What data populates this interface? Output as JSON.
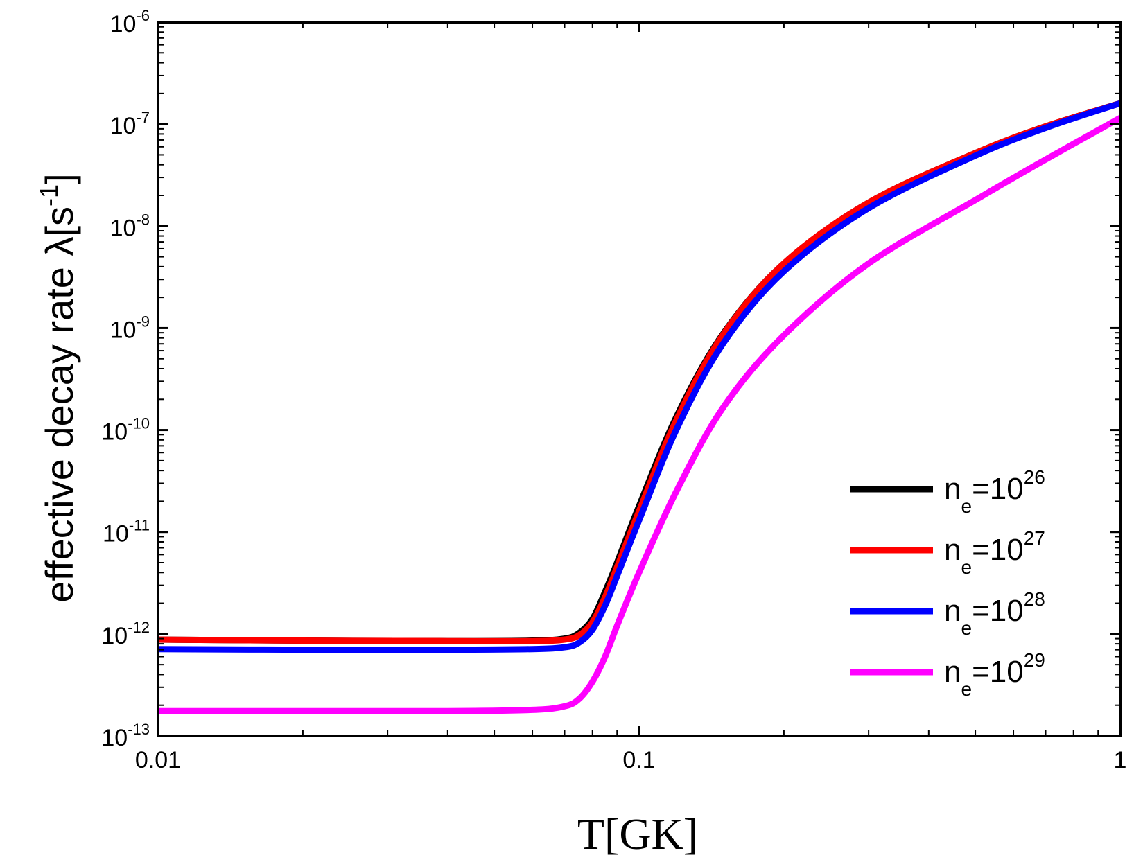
{
  "chart_data": {
    "type": "line",
    "xlabel": "T[GK]",
    "ylabel": {
      "main": "effective decay rate λ[s",
      "sup": "-1",
      "end": "]"
    },
    "xscale": "log",
    "yscale": "log",
    "xlim": [
      0.01,
      1
    ],
    "ylim": [
      1e-13,
      1e-06
    ],
    "x_ticks": [
      {
        "value": 0.01,
        "label": "0.01"
      },
      {
        "value": 0.1,
        "label": "0.1"
      },
      {
        "value": 1,
        "label": "1"
      }
    ],
    "y_ticks": [
      {
        "exp": -6,
        "base": "10",
        "sup": "-6"
      },
      {
        "exp": -7,
        "base": "10",
        "sup": "-7"
      },
      {
        "exp": -8,
        "base": "10",
        "sup": "-8"
      },
      {
        "exp": -9,
        "base": "10",
        "sup": "-9"
      },
      {
        "exp": -10,
        "base": "10",
        "sup": "-10"
      },
      {
        "exp": -11,
        "base": "10",
        "sup": "-11"
      },
      {
        "exp": -12,
        "base": "10",
        "sup": "-12"
      },
      {
        "exp": -13,
        "base": "10",
        "sup": "-13"
      }
    ],
    "legend_position": "bottom-right",
    "x": [
      0.01,
      0.02,
      0.04,
      0.06,
      0.07,
      0.075,
      0.08,
      0.085,
      0.09,
      0.1,
      0.12,
      0.15,
      0.2,
      0.3,
      0.5,
      0.7,
      1.0
    ],
    "series": [
      {
        "name": {
          "base": "n",
          "sub": "e",
          "mid": "=10",
          "sup": "26"
        },
        "color": "#000000",
        "values": [
          8.8e-13,
          8.6e-13,
          8.5e-13,
          8.6e-13,
          9e-13,
          1.02e-12,
          1.4e-12,
          2.6e-12,
          5e-12,
          1.8e-11,
          1.4e-10,
          9e-10,
          4.3e-09,
          1.7e-08,
          5.2e-08,
          9.5e-08,
          1.6e-07
        ]
      },
      {
        "name": {
          "base": "n",
          "sub": "e",
          "mid": "=10",
          "sup": "27"
        },
        "color": "#ff0000",
        "values": [
          8.8e-13,
          8.6e-13,
          8.5e-13,
          8.5e-13,
          8.8e-13,
          9.7e-13,
          1.3e-12,
          2.3e-12,
          4.5e-12,
          1.6e-11,
          1.3e-10,
          8.8e-10,
          4.3e-09,
          1.7e-08,
          5.2e-08,
          9.5e-08,
          1.6e-07
        ]
      },
      {
        "name": {
          "base": "n",
          "sub": "e",
          "mid": "=10",
          "sup": "28"
        },
        "color": "#0000ff",
        "values": [
          7.1e-13,
          7e-13,
          7e-13,
          7.1e-13,
          7.4e-13,
          8.2e-13,
          1.1e-12,
          1.9e-12,
          3.7e-12,
          1.3e-11,
          1.05e-10,
          7.2e-10,
          3.6e-09,
          1.5e-08,
          4.9e-08,
          9.2e-08,
          1.6e-07
        ]
      },
      {
        "name": {
          "base": "n",
          "sub": "e",
          "mid": "=10",
          "sup": "29"
        },
        "color": "#ff00ff",
        "values": [
          1.75e-13,
          1.75e-13,
          1.75e-13,
          1.8e-13,
          1.95e-13,
          2.3e-13,
          3.4e-13,
          6e-13,
          1.2e-12,
          4e-12,
          2.6e-11,
          1.7e-10,
          8.5e-10,
          4.3e-09,
          1.8e-08,
          4.5e-08,
          1.15e-07
        ]
      }
    ]
  }
}
